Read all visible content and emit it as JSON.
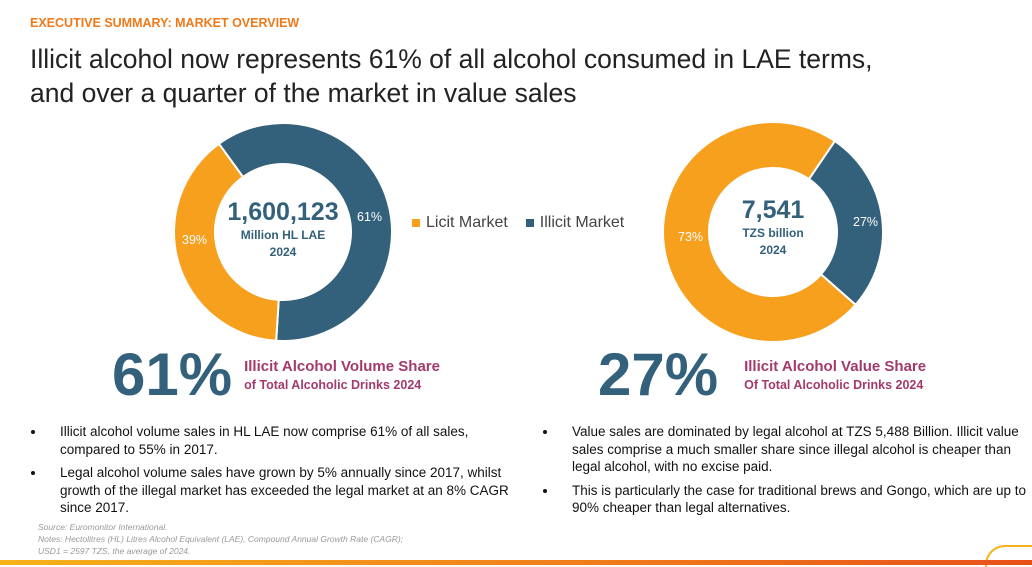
{
  "kicker": "EXECUTIVE SUMMARY: MARKET OVERVIEW",
  "title_line1": "Illicit alcohol now represents 61% of all alcohol consumed in LAE terms,",
  "title_line2": "and over a quarter of the market in value sales",
  "colors": {
    "licit": "#F7A01E",
    "illicit": "#33607A",
    "accent": "#A23A6E",
    "kicker": "#F07A1A"
  },
  "legend": [
    {
      "label": "Licit Market"
    },
    {
      "label": "Illicit Market"
    }
  ],
  "chart_data": [
    {
      "type": "pie",
      "variant": "donut",
      "center_value": "1,600,123",
      "center_unit": "Million HL LAE",
      "center_year": "2024",
      "series": [
        {
          "name": "Licit Market",
          "value": 39,
          "label": "39%"
        },
        {
          "name": "Illicit Market",
          "value": 61,
          "label": "61%"
        }
      ]
    },
    {
      "type": "pie",
      "variant": "donut",
      "center_value": "7,541",
      "center_unit": "TZS billion",
      "center_year": "2024",
      "series": [
        {
          "name": "Licit Market",
          "value": 73,
          "label": "73%"
        },
        {
          "name": "Illicit Market",
          "value": 27,
          "label": "27%"
        }
      ]
    }
  ],
  "stats": [
    {
      "value": "61%",
      "line1": "Illicit Alcohol Volume Share",
      "line2": "of Total Alcoholic Drinks 2024"
    },
    {
      "value": "27%",
      "line1": "Illicit Alcohol Value Share",
      "line2": "Of Total Alcoholic Drinks 2024"
    }
  ],
  "bullets_left": [
    "Illicit alcohol volume sales in HL LAE now comprise 61% of all sales, compared to 55% in 2017.",
    "Legal alcohol volume sales have grown by 5% annually since 2017, whilst growth of the illegal market has exceeded the legal market at an 8% CAGR since 2017."
  ],
  "bullets_right": [
    "Value sales are dominated by legal alcohol at TZS 5,488 Billion. Illicit value sales comprise a much smaller share since illegal alcohol is cheaper than legal alcohol, with no excise paid.",
    "This is particularly the case for traditional brews and Gongo, which are up to 90% cheaper than legal alternatives."
  ],
  "notes": [
    "Source: Euromonitor International.",
    "Notes: Hectolitres (HL) Litres Alcohol Equivalent (LAE), Compound Annual Growth Rate (CAGR);",
    "USD1 = 2597 TZS, the average of 2024."
  ]
}
